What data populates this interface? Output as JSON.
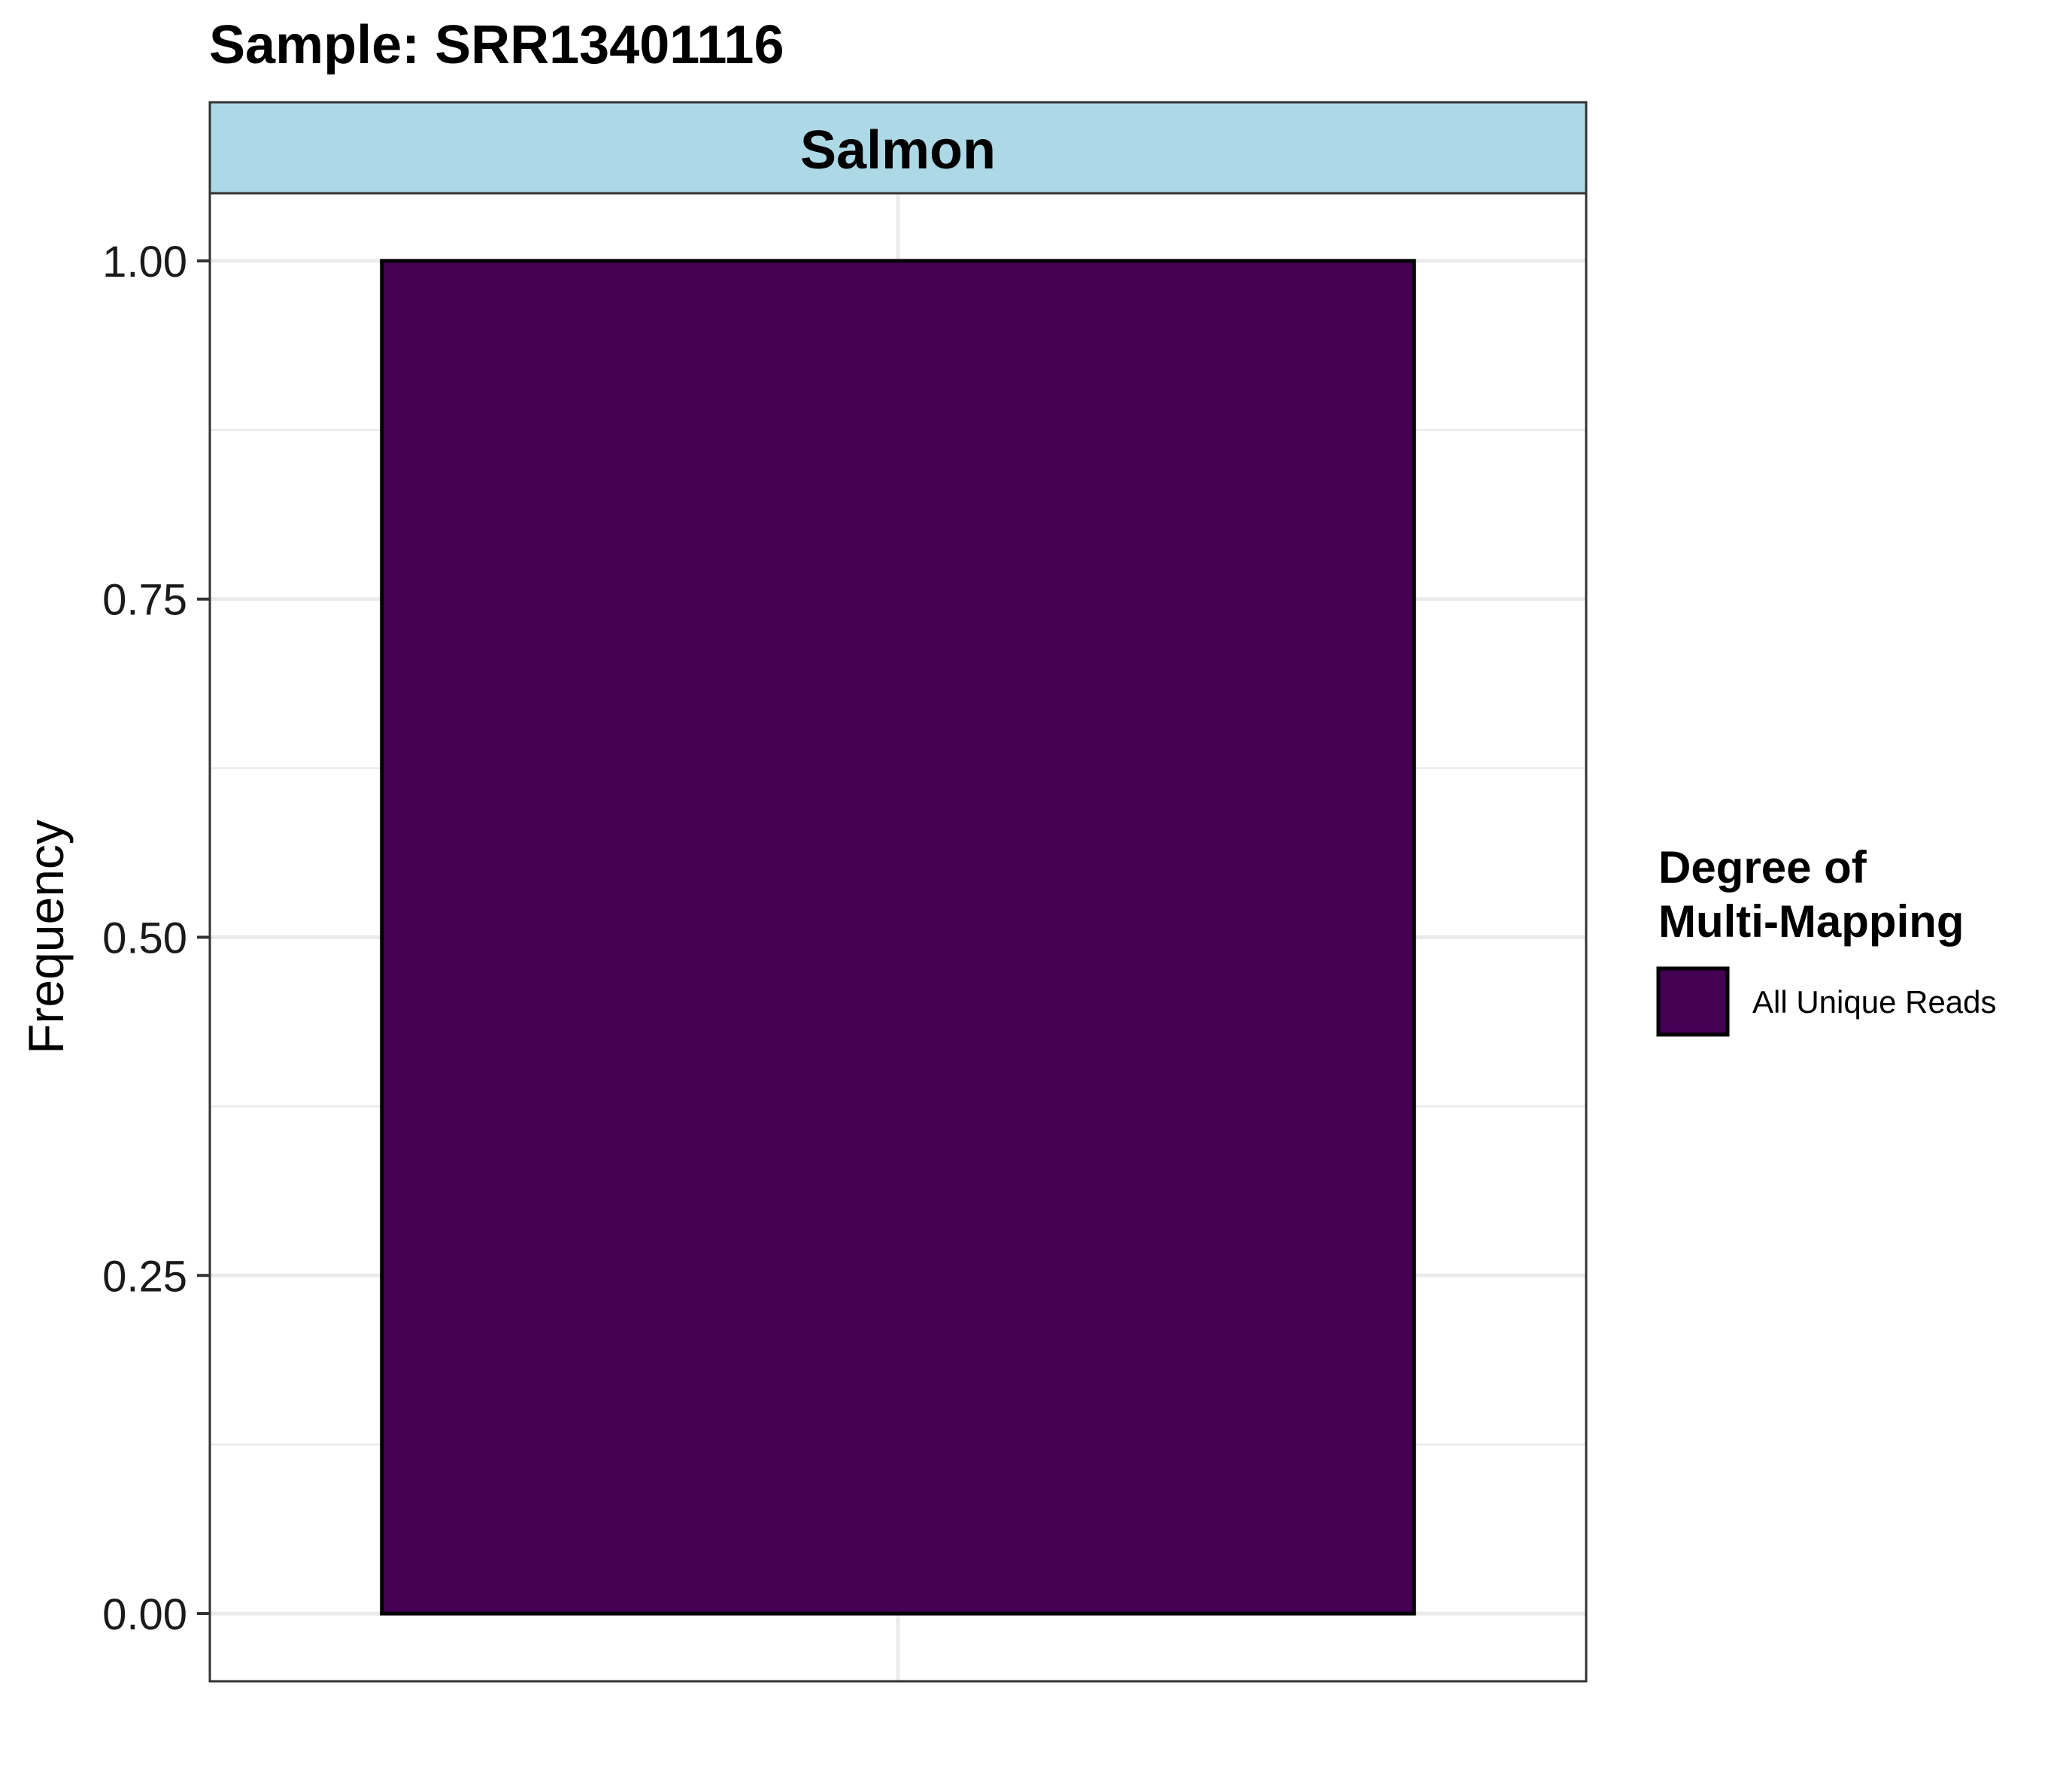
{
  "chart_data": {
    "type": "bar",
    "title": "Sample: SRR13401116",
    "facet_label": "Salmon",
    "xlabel": "",
    "ylabel": "Frequency",
    "ylim": [
      -0.05,
      1.05
    ],
    "y_ticks": [
      0.0,
      0.25,
      0.5,
      0.75,
      1.0
    ],
    "y_tick_labels": [
      "0.00",
      "0.25",
      "0.50",
      "0.75",
      "1.00"
    ],
    "categories": [
      ""
    ],
    "series": [
      {
        "name": "All Unique Reads",
        "values": [
          1.0
        ],
        "color": "#440154"
      }
    ],
    "legend": {
      "title_line1": "Degree of",
      "title_line2": "Multi-Mapping",
      "position": "right",
      "items": [
        {
          "label": "All Unique Reads",
          "color": "#440154"
        }
      ]
    },
    "grid": true,
    "colors": {
      "facet_strip": "#ADD8E6",
      "bar_fill": "#440154",
      "bar_outline": "#000000",
      "grid": "#EBEBEB",
      "panel_border": "#333333"
    }
  }
}
